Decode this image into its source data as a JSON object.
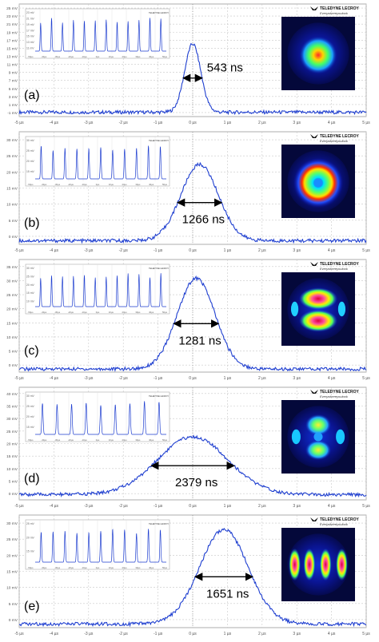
{
  "figure": {
    "brand": "TELEDYNE LECROY",
    "tagline": "Everywhereyoulook"
  },
  "x_ticks": [
    "-5 µs",
    "-4 µs",
    "-3 µs",
    "-2 µs",
    "-1 µs",
    "0 µs",
    "1 µs",
    "2 µs",
    "3 µs",
    "4 µs",
    "5 µs"
  ],
  "inset_x_ticks": [
    "-50µs",
    "-40µs",
    "-30µs",
    "-20µs",
    "-10µs",
    "0µs",
    "10µs",
    "20µs",
    "30µs",
    "40µs",
    "50µs"
  ],
  "colors": {
    "trace": "#1f3fd0",
    "grid": "#c8c8c8",
    "border": "#9a9a9a"
  },
  "chart_data": [
    {
      "type": "line",
      "panel_label": "(a)",
      "width_annotation": "543 ns",
      "x_range_us": [
        -5,
        5
      ],
      "y_ticks": [
        "25 mV",
        "23 mV",
        "21 mV",
        "19 mV",
        "17 mV",
        "15 mV",
        "13 mV",
        "11 mV",
        "9 mV",
        "7 mV",
        "5 mV",
        "3 mV",
        "1 mV",
        "-1 mV"
      ],
      "ylim_mV": [
        -1,
        25
      ],
      "baseline_mV": 0,
      "peak_mV": 15.8,
      "peak_center_us": 0.0,
      "fwhm_ns": 543,
      "inset_y_ticks": [
        "23 mV",
        "21 mV",
        "19 mV",
        "17 mV",
        "15 mV",
        "13 mV",
        "11 mV"
      ],
      "inset_peaks": 12,
      "beam_mode": "gaussian"
    },
    {
      "type": "line",
      "panel_label": "(b)",
      "width_annotation": "1266 ns",
      "x_range_us": [
        -5,
        5
      ],
      "y_ticks": [
        "30 mV",
        "25 mV",
        "20 mV",
        "15 mV",
        "10 mV",
        "5 mV",
        "0 mV"
      ],
      "ylim_mV": [
        -1,
        30
      ],
      "baseline_mV": 0,
      "peak_mV": 21,
      "peak_center_us": 0.2,
      "fwhm_ns": 1266,
      "inset_y_ticks": [
        "30 mV",
        "25 mV",
        "20 mV",
        "15 mV"
      ],
      "inset_peaks": 11,
      "beam_mode": "donut"
    },
    {
      "type": "line",
      "panel_label": "(c)",
      "width_annotation": "1281 ns",
      "x_range_us": [
        -5,
        5
      ],
      "y_ticks": [
        "35 mV",
        "30 mV",
        "25 mV",
        "20 mV",
        "15 mV",
        "10 mV",
        "5 mV",
        "0 mV"
      ],
      "ylim_mV": [
        -1,
        35
      ],
      "baseline_mV": 0,
      "peak_mV": 29,
      "peak_center_us": 0.1,
      "fwhm_ns": 1281,
      "inset_y_ticks": [
        "30 mV",
        "25 mV",
        "20 mV",
        "15 mV",
        "10 mV"
      ],
      "inset_peaks": 12,
      "beam_mode": "two-lobe"
    },
    {
      "type": "line",
      "panel_label": "(d)",
      "width_annotation": "2379 ns",
      "x_range_us": [
        -5,
        5
      ],
      "y_ticks": [
        "40 mV",
        "35 mV",
        "30 mV",
        "25 mV",
        "20 mV",
        "15 mV",
        "10 mV",
        "5 mV",
        "0 mV"
      ],
      "ylim_mV": [
        -2,
        40
      ],
      "baseline_mV": 0,
      "peak_mV": 21.5,
      "peak_center_us": 0.0,
      "fwhm_ns": 2379,
      "inset_y_ticks": [
        "30 mV",
        "25 mV",
        "20 mV",
        "15 mV"
      ],
      "inset_peaks": 9,
      "beam_mode": "petal"
    },
    {
      "type": "line",
      "panel_label": "(e)",
      "width_annotation": "1651 ns",
      "x_range_us": [
        -5,
        5
      ],
      "y_ticks": [
        "30 mV",
        "25 mV",
        "20 mV",
        "15 mV",
        "10 mV",
        "5 mV",
        "0 mV"
      ],
      "ylim_mV": [
        -1,
        30
      ],
      "baseline_mV": 0,
      "peak_mV": 26,
      "peak_center_us": 0.9,
      "fwhm_ns": 1651,
      "inset_y_ticks": [
        "25 mV",
        "20 mV",
        "15 mV"
      ],
      "inset_peaks": 11,
      "beam_mode": "multi-lobe"
    }
  ]
}
